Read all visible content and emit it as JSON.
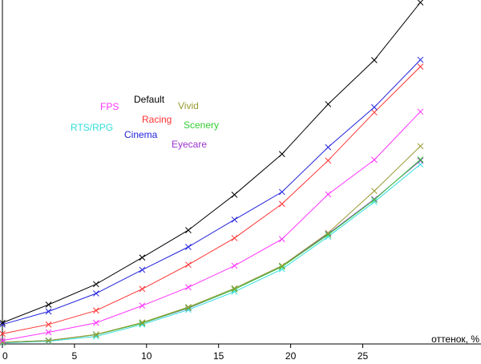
{
  "chart_data": {
    "type": "line",
    "xlabel": "оттенок, %",
    "ylabel": "",
    "xlim": [
      0,
      29.2
    ],
    "ylim": [
      0,
      1.0
    ],
    "xticks": [
      0,
      5,
      10,
      15,
      20,
      25
    ],
    "x": [
      0,
      3.2,
      6.5,
      9.7,
      12.9,
      16.1,
      19.4,
      22.6,
      25.8,
      29.0
    ],
    "grid": false,
    "series": [
      {
        "name": "Default",
        "color": "#000000",
        "values": [
          0.062,
          0.115,
          0.175,
          0.253,
          0.333,
          0.437,
          0.556,
          0.702,
          0.831,
          1.0
        ]
      },
      {
        "name": "Cinema",
        "color": "#2222dd",
        "values": [
          0.057,
          0.095,
          0.148,
          0.217,
          0.284,
          0.364,
          0.445,
          0.576,
          0.693,
          0.832
        ]
      },
      {
        "name": "Racing",
        "color": "#ff3333",
        "values": [
          0.03,
          0.057,
          0.098,
          0.161,
          0.232,
          0.31,
          0.41,
          0.537,
          0.678,
          0.812
        ]
      },
      {
        "name": "FPS",
        "color": "#ff33ff",
        "values": [
          0.01,
          0.034,
          0.062,
          0.112,
          0.166,
          0.229,
          0.307,
          0.438,
          0.539,
          0.68
        ]
      },
      {
        "name": "Vivid",
        "color": "#999933",
        "values": [
          0.005,
          0.01,
          0.028,
          0.063,
          0.108,
          0.163,
          0.229,
          0.325,
          0.448,
          0.579
        ]
      },
      {
        "name": "Scenery",
        "color": "#33cc33",
        "values": [
          0.005,
          0.01,
          0.027,
          0.061,
          0.106,
          0.16,
          0.226,
          0.32,
          0.422,
          0.54
        ]
      },
      {
        "name": "Eyecare",
        "color": "#9933cc",
        "values": [
          0.005,
          0.01,
          0.027,
          0.061,
          0.105,
          0.16,
          0.228,
          0.322,
          0.424,
          0.537
        ]
      },
      {
        "name": "RTS/RPG",
        "color": "#33dddd",
        "values": [
          0.003,
          0.008,
          0.022,
          0.057,
          0.1,
          0.153,
          0.219,
          0.314,
          0.416,
          0.526
        ]
      }
    ],
    "legend": {
      "placement": "upper-left",
      "entries": [
        {
          "text": "FPS",
          "color": "#ff33ff"
        },
        {
          "text": "Default",
          "color": "#000000"
        },
        {
          "text": "Vivid",
          "color": "#999933"
        },
        {
          "text": "Racing",
          "color": "#ff3333"
        },
        {
          "text": "Scenery",
          "color": "#33cc33"
        },
        {
          "text": "RTS/RPG",
          "color": "#33dddd"
        },
        {
          "text": "Cinema",
          "color": "#2222dd"
        },
        {
          "text": "Eyecare",
          "color": "#9933cc"
        }
      ]
    }
  }
}
